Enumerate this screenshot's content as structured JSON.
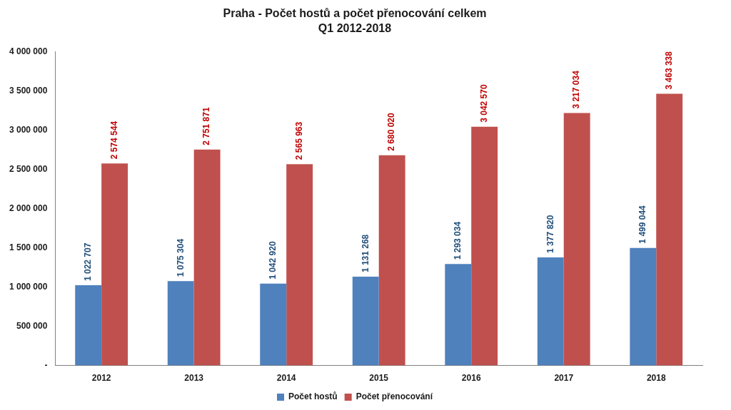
{
  "chart_data": {
    "type": "bar",
    "title": "Praha - Počet hostů a počet přenocování celkem",
    "subtitle": "Q1 2012-2018",
    "categories": [
      "2012",
      "2013",
      "2014",
      "2015",
      "2016",
      "2017",
      "2018"
    ],
    "series": [
      {
        "name": "Počet hostů",
        "color": "#4f81bd",
        "values": [
          1022707,
          1075304,
          1042920,
          1131268,
          1293034,
          1377820,
          1499044
        ],
        "value_labels": [
          "1 022 707",
          "1 075 304",
          "1 042 920",
          "1 131 268",
          "1 293 034",
          "1 377 820",
          "1 499 044"
        ]
      },
      {
        "name": "Počet přenocování",
        "color": "#c0504d",
        "values": [
          2574544,
          2751871,
          2565963,
          2680020,
          3042570,
          3217034,
          3463338
        ],
        "value_labels": [
          "2 574 544",
          "2 751 871",
          "2 565 963",
          "2 680 020",
          "3 042 570",
          "3 217 034",
          "3 463 338"
        ]
      }
    ],
    "ylim": [
      0,
      4000000
    ],
    "yticks": [
      {
        "value": 0,
        "label": "-"
      },
      {
        "value": 500000,
        "label": "500 000"
      },
      {
        "value": 1000000,
        "label": "1 000 000"
      },
      {
        "value": 1500000,
        "label": "1 500 000"
      },
      {
        "value": 2000000,
        "label": "2 000 000"
      },
      {
        "value": 2500000,
        "label": "2 500 000"
      },
      {
        "value": 3000000,
        "label": "3 000 000"
      },
      {
        "value": 3500000,
        "label": "3 500 000"
      },
      {
        "value": 4000000,
        "label": "4 000 000"
      }
    ],
    "grid": false,
    "legend": "bottom",
    "data_labels": true
  }
}
